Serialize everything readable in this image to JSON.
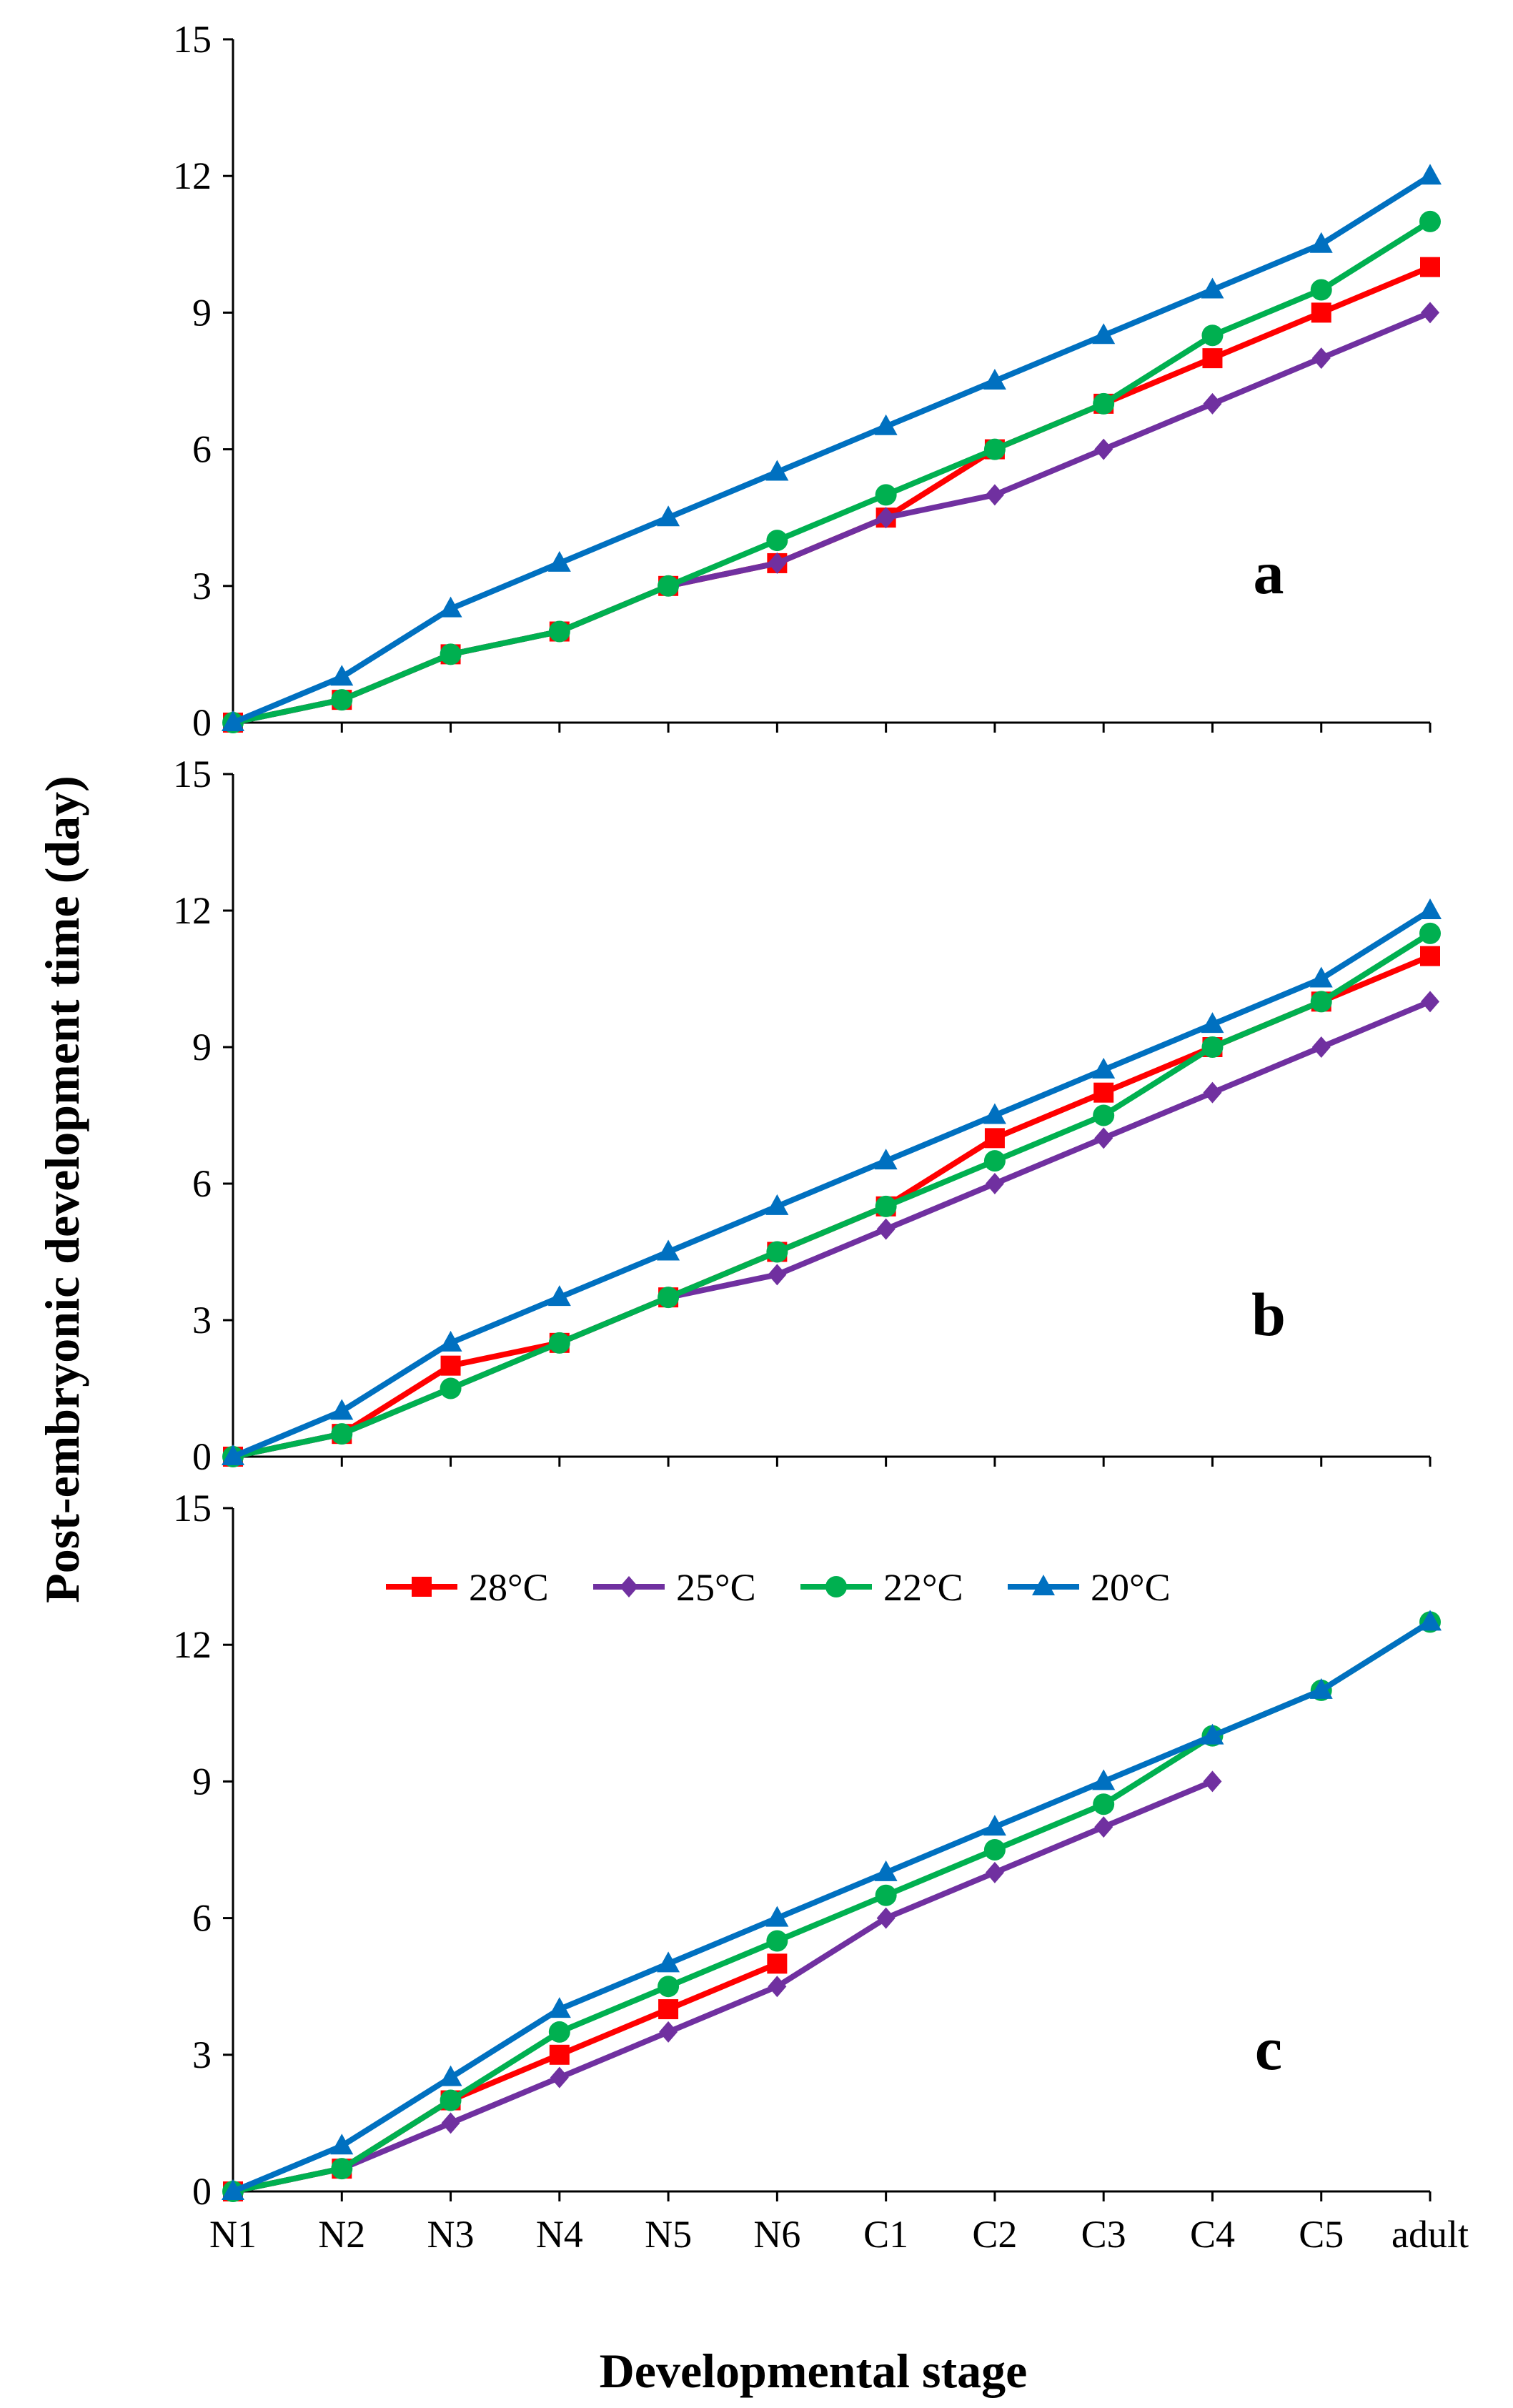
{
  "chart_data": {
    "type": "line",
    "xlabel": "Developmental stage",
    "ylabel": "Post-embryonic development time  (day)",
    "categories": [
      "N1",
      "N2",
      "N3",
      "N4",
      "N5",
      "N6",
      "C1",
      "C2",
      "C3",
      "C4",
      "C5",
      "adult"
    ],
    "ylim": [
      0,
      15
    ],
    "yticks": [
      0,
      3,
      6,
      9,
      12,
      15
    ],
    "grid": false,
    "legend": {
      "placement": "top (panel c)",
      "entries": [
        {
          "label": "28°C",
          "color": "#ff0000",
          "marker": "square"
        },
        {
          "label": "25°C",
          "color": "#7030a0",
          "marker": "diamond"
        },
        {
          "label": "22°C",
          "color": "#00b050",
          "marker": "circle"
        },
        {
          "label": "20°C",
          "color": "#0070c0",
          "marker": "triangle"
        }
      ]
    },
    "panels": [
      {
        "label": "a",
        "series": [
          {
            "name": "28°C",
            "values": [
              0,
              0.5,
              1.5,
              2,
              3,
              3.5,
              4.5,
              6,
              7,
              8,
              9,
              10
            ]
          },
          {
            "name": "25°C",
            "values": [
              0,
              0.5,
              1.5,
              2,
              3,
              3.5,
              4.5,
              5,
              6,
              7,
              8,
              9
            ]
          },
          {
            "name": "22°C",
            "values": [
              0,
              0.5,
              1.5,
              2,
              3,
              4,
              5,
              6,
              7,
              8.5,
              9.5,
              11
            ]
          },
          {
            "name": "20°C",
            "values": [
              0,
              1,
              2.5,
              3.5,
              4.5,
              5.5,
              6.5,
              7.5,
              8.5,
              9.5,
              10.5,
              12
            ]
          }
        ]
      },
      {
        "label": "b",
        "series": [
          {
            "name": "28°C",
            "values": [
              0,
              0.5,
              2,
              2.5,
              3.5,
              4.5,
              5.5,
              7,
              8,
              9,
              10,
              11
            ]
          },
          {
            "name": "25°C",
            "values": [
              0,
              0.5,
              1.5,
              2.5,
              3.5,
              4,
              5,
              6,
              7,
              8,
              9,
              10
            ]
          },
          {
            "name": "22°C",
            "values": [
              0,
              0.5,
              1.5,
              2.5,
              3.5,
              4.5,
              5.5,
              6.5,
              7.5,
              9,
              10,
              11.5
            ]
          },
          {
            "name": "20°C",
            "values": [
              0,
              1,
              2.5,
              3.5,
              4.5,
              5.5,
              6.5,
              7.5,
              8.5,
              9.5,
              10.5,
              12
            ]
          }
        ]
      },
      {
        "label": "c",
        "series": [
          {
            "name": "28°C",
            "values": [
              0,
              0.5,
              2,
              3,
              4,
              5,
              null,
              null,
              null,
              null,
              null,
              null
            ]
          },
          {
            "name": "25°C",
            "values": [
              0,
              0.5,
              1.5,
              2.5,
              3.5,
              4.5,
              6,
              7,
              8,
              9,
              null,
              null
            ]
          },
          {
            "name": "22°C",
            "values": [
              0,
              0.5,
              2,
              3.5,
              4.5,
              5.5,
              6.5,
              7.5,
              8.5,
              10,
              11,
              12.5
            ]
          },
          {
            "name": "20°C",
            "values": [
              0,
              1,
              2.5,
              4,
              5,
              6,
              7,
              8,
              9,
              10,
              11,
              12.5
            ]
          }
        ]
      }
    ]
  }
}
